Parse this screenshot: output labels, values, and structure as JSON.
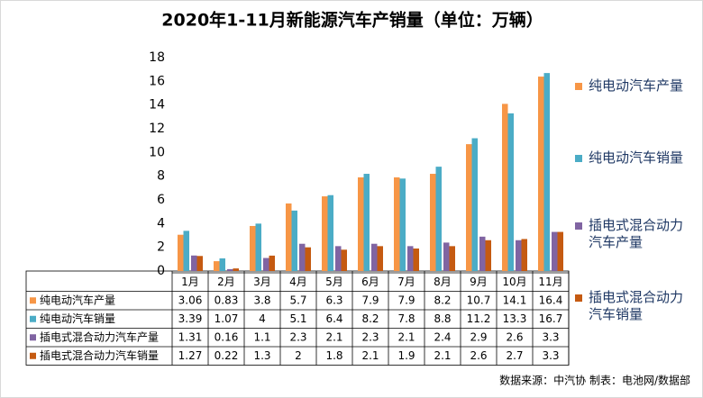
{
  "chart_data": {
    "type": "bar",
    "title": "2020年1-11月新能源汽车产销量（单位：万辆）",
    "categories": [
      "1月",
      "2月",
      "3月",
      "4月",
      "5月",
      "6月",
      "7月",
      "8月",
      "9月",
      "10月",
      "11月"
    ],
    "series": [
      {
        "name": "纯电动汽车产量",
        "color": "#f79646",
        "values": [
          3.06,
          0.83,
          3.8,
          5.7,
          6.3,
          7.9,
          7.9,
          8.2,
          10.7,
          14.1,
          16.4
        ]
      },
      {
        "name": "纯电动汽车销量",
        "color": "#4bacc6",
        "values": [
          3.39,
          1.07,
          4,
          5.1,
          6.4,
          8.2,
          7.8,
          8.8,
          11.2,
          13.3,
          16.7
        ]
      },
      {
        "name": "插电式混合动力汽车产量",
        "color": "#8064a2",
        "values": [
          1.31,
          0.16,
          1.1,
          2.3,
          2.1,
          2.3,
          2.1,
          2.4,
          2.9,
          2.6,
          3.3
        ]
      },
      {
        "name": "插电式混合动力汽车销量",
        "color": "#c55a11",
        "values": [
          1.27,
          0.22,
          1.3,
          2,
          1.8,
          2.1,
          1.9,
          2.1,
          2.6,
          2.7,
          3.3
        ]
      }
    ],
    "ylim": [
      0,
      18
    ],
    "yticks": [
      0,
      2,
      4,
      6,
      8,
      10,
      12,
      14,
      16,
      18
    ],
    "legend": "right",
    "source": "数据来源：中汽协 制表：电池网/数据部"
  }
}
